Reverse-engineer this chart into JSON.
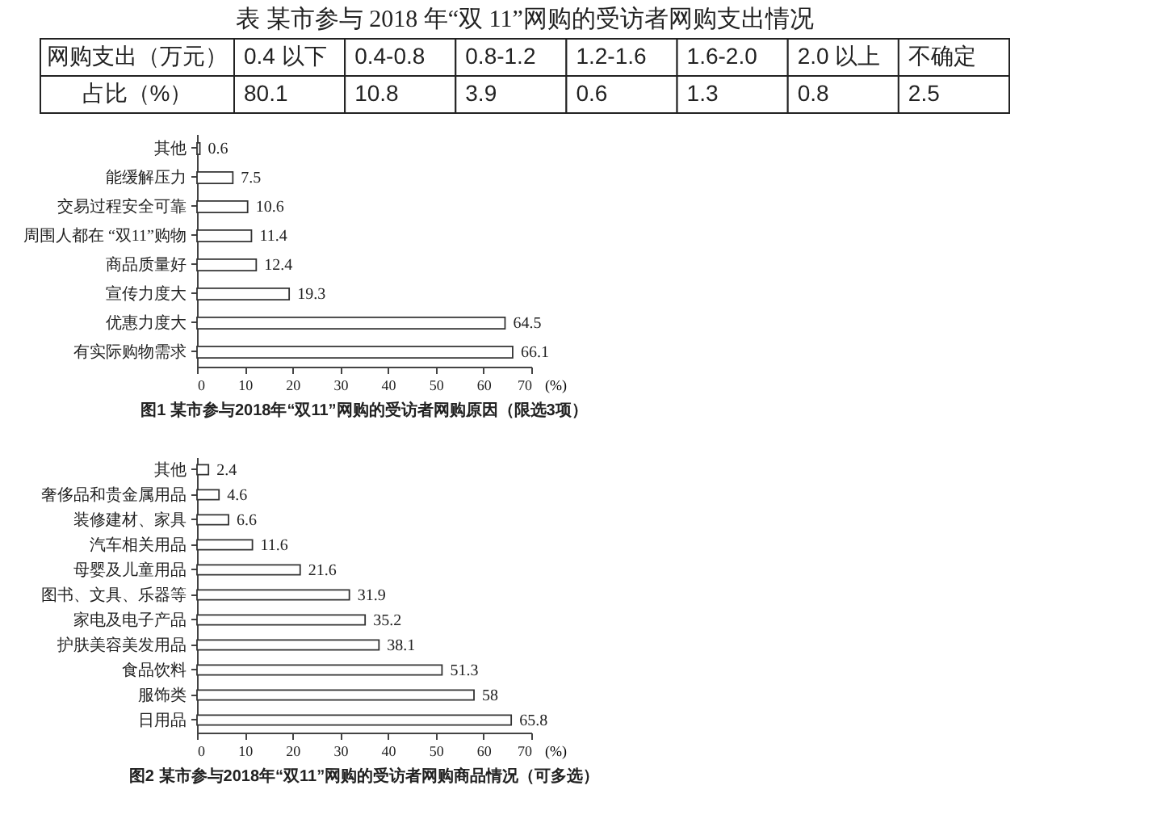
{
  "chart_data": [
    {
      "type": "other",
      "title": "表  某市参与 2018 年“双 11”网购的受访者网购支出情况",
      "xlabel": "网购支出（万元）",
      "ylabel": "占比（%）",
      "categories": [
        "0.4 以下",
        "0.4-0.8",
        "0.8-1.2",
        "1.2-1.6",
        "1.6-2.0",
        "2.0 以上",
        "不确定"
      ],
      "values": [
        80.1,
        10.8,
        3.9,
        0.6,
        1.3,
        0.8,
        2.5
      ],
      "data_labels": true
    },
    {
      "type": "bar",
      "orientation": "horizontal",
      "title": "图1  某市参与2018年“双11”网购的受访者网购原因（限选3项）",
      "xlabel": "(%)",
      "categories": [
        "其他",
        "能缓解压力",
        "交易过程安全可靠",
        "周围人都在 “双11”购物",
        "商品质量好",
        "宣传力度大",
        "优惠力度大",
        "有实际购物需求"
      ],
      "values": [
        0.6,
        7.5,
        10.6,
        11.4,
        12.4,
        19.3,
        64.5,
        66.1
      ],
      "color": "#ffffff",
      "xlim": [
        0,
        70
      ],
      "xticks": [
        0,
        10,
        20,
        30,
        40,
        50,
        60,
        70
      ],
      "data_labels": true
    },
    {
      "type": "bar",
      "orientation": "horizontal",
      "title": "图2  某市参与2018年“双11”网购的受访者网购商品情况（可多选）",
      "xlabel": "(%)",
      "categories": [
        "其他",
        "奢侈品和贵金属用品",
        "装修建材、家具",
        "汽车相关用品",
        "母婴及儿童用品",
        "图书、文具、乐器等",
        "家电及电子产品",
        "护肤美容美发用品",
        "食品饮料",
        "服饰类",
        "日用品"
      ],
      "values": [
        2.4,
        4.6,
        6.6,
        11.6,
        21.6,
        31.9,
        35.2,
        38.1,
        51.3,
        58,
        65.8
      ],
      "color": "#ffffff",
      "xlim": [
        0,
        70
      ],
      "xticks": [
        0,
        10,
        20,
        30,
        40,
        50,
        60,
        70
      ],
      "data_labels": true
    }
  ]
}
